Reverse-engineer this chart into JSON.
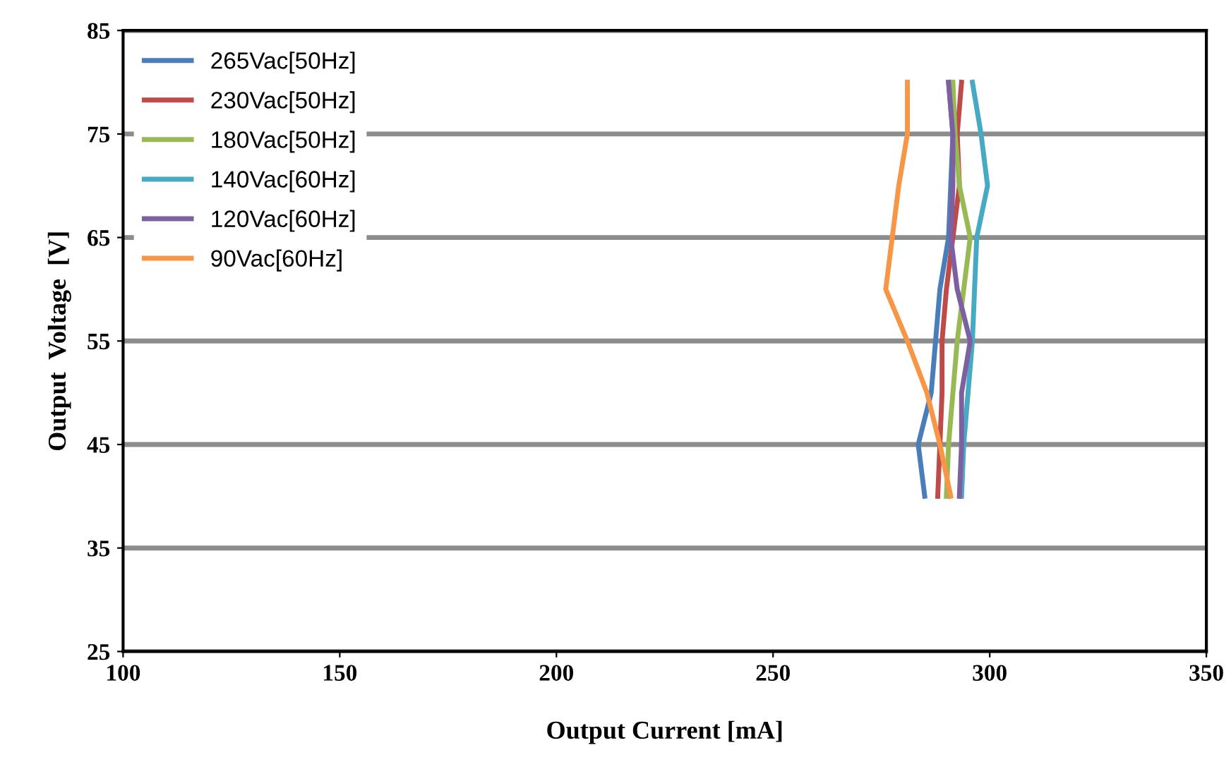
{
  "chart_data": {
    "type": "line",
    "xlabel": "Output Current [mA]",
    "ylabel": "Output  Voltage  [V]",
    "xlim": [
      100,
      350
    ],
    "xticks": [
      100,
      150,
      200,
      250,
      300,
      350
    ],
    "ylim": [
      25,
      85
    ],
    "yticks": [
      25,
      35,
      45,
      55,
      65,
      75,
      85
    ],
    "grid": "y",
    "legend": "top left",
    "marker": "none",
    "line_style": "solid",
    "series": [
      {
        "name": "265Vac[50Hz]",
        "color": "#4a7ebb",
        "x": [
          290.5,
          291.5,
          291,
          290.5,
          288.5,
          287.5,
          286.5,
          283.5,
          285
        ],
        "values": [
          80,
          75,
          70,
          65,
          60,
          55,
          50,
          45,
          40
        ]
      },
      {
        "name": "230Vac[50Hz]",
        "color": "#be4b48",
        "x": [
          293.5,
          292.5,
          293,
          291.5,
          290,
          289,
          289,
          288.5,
          288
        ],
        "values": [
          80,
          75,
          70,
          65,
          60,
          55,
          50,
          45,
          40
        ]
      },
      {
        "name": "180Vac[50Hz]",
        "color": "#98b954",
        "x": [
          291.5,
          292,
          293,
          295.5,
          294,
          292.5,
          291.5,
          290.5,
          290
        ],
        "values": [
          80,
          75,
          70,
          65,
          60,
          55,
          50,
          45,
          40
        ]
      },
      {
        "name": "140Vac[60Hz]",
        "color": "#46aac5",
        "x": [
          296,
          298,
          299.5,
          297,
          296.5,
          296,
          295,
          294,
          293.5
        ],
        "values": [
          80,
          75,
          70,
          65,
          60,
          55,
          50,
          45,
          40
        ]
      },
      {
        "name": "120Vac[60Hz]",
        "color": "#7d60a0",
        "x": [
          290.5,
          291.5,
          291.5,
          291,
          292.5,
          295.5,
          293.5,
          293.5,
          293
        ],
        "values": [
          80,
          75,
          70,
          65,
          60,
          55,
          50,
          45,
          40
        ]
      },
      {
        "name": "90Vac[60Hz]",
        "color": "#f79646",
        "x": [
          281,
          281,
          279,
          277.5,
          276,
          281,
          285.5,
          288.5,
          291
        ],
        "values": [
          80,
          75,
          70,
          65,
          60,
          55,
          50,
          45,
          40
        ]
      }
    ]
  }
}
